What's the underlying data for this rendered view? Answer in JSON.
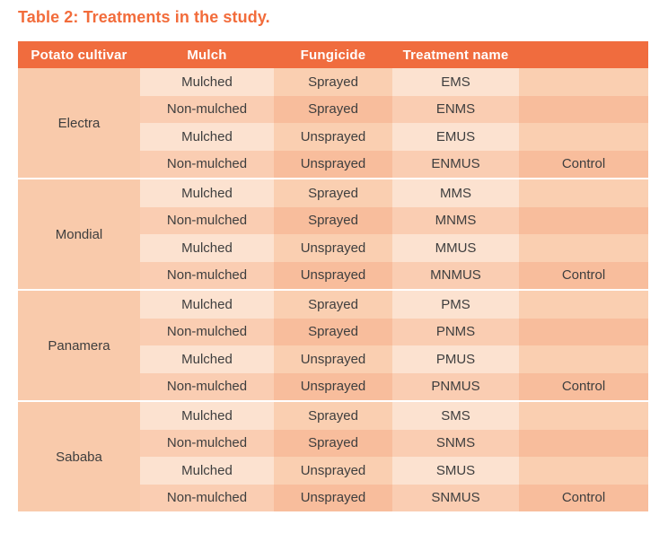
{
  "title": "Table 2: Treatments in the study.",
  "colors": {
    "title_text": "#f26c3b",
    "header_bg": "#f06c3e",
    "header_text": "#ffffff",
    "cultivar_cell_bg": "#f9caab",
    "light_col_light_row_bg": "#fce2d0",
    "light_col_dark_row_bg": "#facdb2",
    "dark_col_light_row_bg": "#facfb1",
    "dark_col_dark_row_bg": "#f8bd9c",
    "body_text": "#3e3e3e",
    "group_separator": "#ffffff"
  },
  "table": {
    "headers": [
      "Potato cultivar",
      "Mulch",
      "Fungicide",
      "Treatment name",
      ""
    ],
    "groups": [
      {
        "cultivar": "Electra",
        "rows": [
          {
            "mulch": "Mulched",
            "fungicide": "Sprayed",
            "treatment": "EMS",
            "note": ""
          },
          {
            "mulch": "Non-mulched",
            "fungicide": "Sprayed",
            "treatment": "ENMS",
            "note": ""
          },
          {
            "mulch": "Mulched",
            "fungicide": "Unsprayed",
            "treatment": "EMUS",
            "note": ""
          },
          {
            "mulch": "Non-mulched",
            "fungicide": "Unsprayed",
            "treatment": "ENMUS",
            "note": "Control"
          }
        ]
      },
      {
        "cultivar": "Mondial",
        "rows": [
          {
            "mulch": "Mulched",
            "fungicide": "Sprayed",
            "treatment": "MMS",
            "note": ""
          },
          {
            "mulch": "Non-mulched",
            "fungicide": "Sprayed",
            "treatment": "MNMS",
            "note": ""
          },
          {
            "mulch": "Mulched",
            "fungicide": "Unsprayed",
            "treatment": "MMUS",
            "note": ""
          },
          {
            "mulch": "Non-mulched",
            "fungicide": "Unsprayed",
            "treatment": "MNMUS",
            "note": "Control"
          }
        ]
      },
      {
        "cultivar": "Panamera",
        "rows": [
          {
            "mulch": "Mulched",
            "fungicide": "Sprayed",
            "treatment": "PMS",
            "note": ""
          },
          {
            "mulch": "Non-mulched",
            "fungicide": "Sprayed",
            "treatment": "PNMS",
            "note": ""
          },
          {
            "mulch": "Mulched",
            "fungicide": "Unsprayed",
            "treatment": "PMUS",
            "note": ""
          },
          {
            "mulch": "Non-mulched",
            "fungicide": "Unsprayed",
            "treatment": "PNMUS",
            "note": "Control"
          }
        ]
      },
      {
        "cultivar": "Sababa",
        "rows": [
          {
            "mulch": "Mulched",
            "fungicide": "Sprayed",
            "treatment": "SMS",
            "note": ""
          },
          {
            "mulch": "Non-mulched",
            "fungicide": "Sprayed",
            "treatment": "SNMS",
            "note": ""
          },
          {
            "mulch": "Mulched",
            "fungicide": "Unsprayed",
            "treatment": "SMUS",
            "note": ""
          },
          {
            "mulch": "Non-mulched",
            "fungicide": "Unsprayed",
            "treatment": "SNMUS",
            "note": "Control"
          }
        ]
      }
    ]
  }
}
